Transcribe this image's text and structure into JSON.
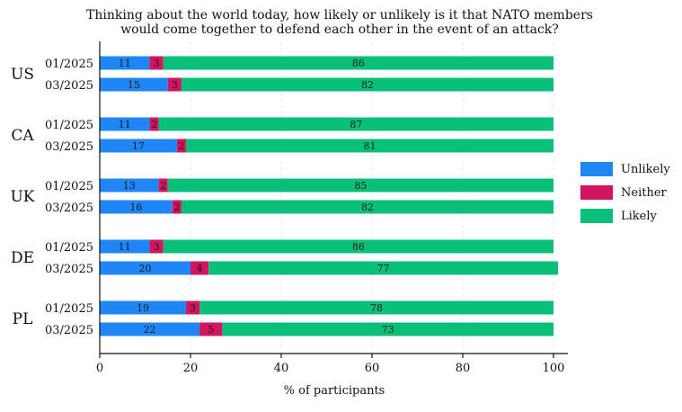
{
  "chart_data": {
    "type": "bar",
    "orientation": "horizontal",
    "stacked": true,
    "title": [
      "Thinking about the world today, how likely or unlikely is it that NATO members",
      "would come together to defend each other in the event of an attack?"
    ],
    "xlabel": "% of participants",
    "xlim": [
      0,
      100
    ],
    "xticks": [
      0,
      20,
      40,
      60,
      80,
      100
    ],
    "grid": true,
    "legend_position": "right",
    "series": [
      {
        "name": "Unlikely",
        "color": "#1f86f5"
      },
      {
        "name": "Neither",
        "color": "#d3145f"
      },
      {
        "name": "Likely",
        "color": "#08c07a"
      }
    ],
    "groups": [
      {
        "label": "US",
        "rows": [
          {
            "period": "01/2025",
            "values": [
              11,
              3,
              86
            ]
          },
          {
            "period": "03/2025",
            "values": [
              15,
              3,
              82
            ]
          }
        ]
      },
      {
        "label": "CA",
        "rows": [
          {
            "period": "01/2025",
            "values": [
              11,
              2,
              87
            ]
          },
          {
            "period": "03/2025",
            "values": [
              17,
              2,
              81
            ]
          }
        ]
      },
      {
        "label": "UK",
        "rows": [
          {
            "period": "01/2025",
            "values": [
              13,
              2,
              85
            ]
          },
          {
            "period": "03/2025",
            "values": [
              16,
              2,
              82
            ]
          }
        ]
      },
      {
        "label": "DE",
        "rows": [
          {
            "period": "01/2025",
            "values": [
              11,
              3,
              86
            ]
          },
          {
            "period": "03/2025",
            "values": [
              20,
              4,
              77
            ]
          }
        ]
      },
      {
        "label": "PL",
        "rows": [
          {
            "period": "01/2025",
            "values": [
              19,
              3,
              78
            ]
          },
          {
            "period": "03/2025",
            "values": [
              22,
              5,
              73
            ]
          }
        ]
      }
    ]
  }
}
